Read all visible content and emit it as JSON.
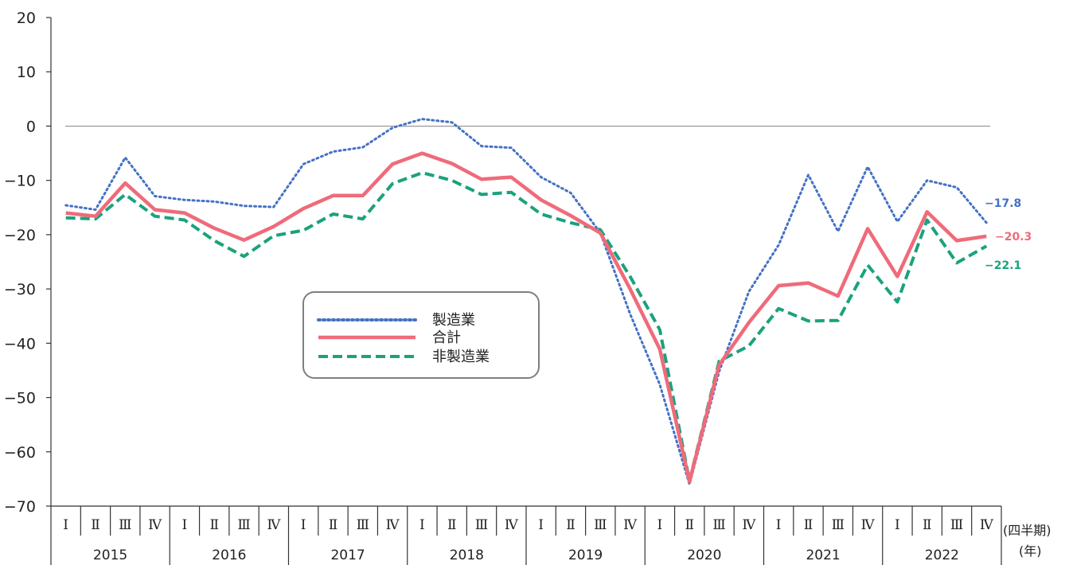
{
  "chart_data": {
    "type": "line",
    "ylim": [
      -70,
      20
    ],
    "yticks": [
      20,
      10,
      0,
      -10,
      -20,
      -30,
      -40,
      -50,
      -60,
      -70
    ],
    "yticks_text": [
      "20",
      "10",
      "0",
      "−10",
      "−20",
      "−30",
      "−40",
      "−50",
      "−60",
      "−70"
    ],
    "quarter_labels": [
      "Ⅰ",
      "Ⅱ",
      "Ⅲ",
      "Ⅳ"
    ],
    "years": [
      "2015",
      "2016",
      "2017",
      "2018",
      "2019",
      "2020",
      "2021",
      "2022"
    ],
    "quarter_unit": "(四半期)",
    "year_unit": "(年)",
    "grid": false,
    "zero_line": true,
    "legend_position": "center-left",
    "series": [
      {
        "name": "製造業",
        "style": "dotted",
        "color": "#4472C4",
        "end_label": "−17.8",
        "values": [
          -14.6,
          -15.4,
          -5.8,
          -12.9,
          -13.6,
          -13.9,
          -14.7,
          -14.9,
          -7.0,
          -4.7,
          -3.9,
          -0.3,
          1.3,
          0.7,
          -3.7,
          -4.0,
          -9.4,
          -12.3,
          -19.7,
          -34.6,
          -47.6,
          -66.0,
          -45.2,
          -30.5,
          -21.9,
          -9.0,
          -19.4,
          -7.5,
          -17.6,
          -10.0,
          -11.3,
          -17.8
        ]
      },
      {
        "name": "合計",
        "style": "solid",
        "color": "#EF6B7A",
        "end_label": "−20.3",
        "values": [
          -16.0,
          -16.6,
          -10.5,
          -15.4,
          -16.0,
          -18.8,
          -21.0,
          -18.5,
          -15.2,
          -12.8,
          -12.8,
          -7.0,
          -5.0,
          -6.9,
          -9.8,
          -9.4,
          -13.6,
          -16.5,
          -19.7,
          -30.0,
          -41.1,
          -65.5,
          -44.0,
          -36.2,
          -29.4,
          -28.9,
          -31.3,
          -18.9,
          -27.7,
          -15.8,
          -21.1,
          -20.3
        ]
      },
      {
        "name": "非製造業",
        "style": "dashed",
        "color": "#1BA27C",
        "end_label": "−22.1",
        "values": [
          -16.9,
          -17.1,
          -12.6,
          -16.6,
          -17.3,
          -21.1,
          -24.0,
          -20.2,
          -19.2,
          -16.2,
          -17.1,
          -10.6,
          -8.6,
          -10.0,
          -12.6,
          -12.2,
          -16.2,
          -17.8,
          -19.1,
          -27.7,
          -37.5,
          -65.3,
          -43.3,
          -40.5,
          -33.6,
          -35.9,
          -35.8,
          -25.6,
          -32.4,
          -17.3,
          -25.2,
          -22.1
        ]
      }
    ]
  }
}
